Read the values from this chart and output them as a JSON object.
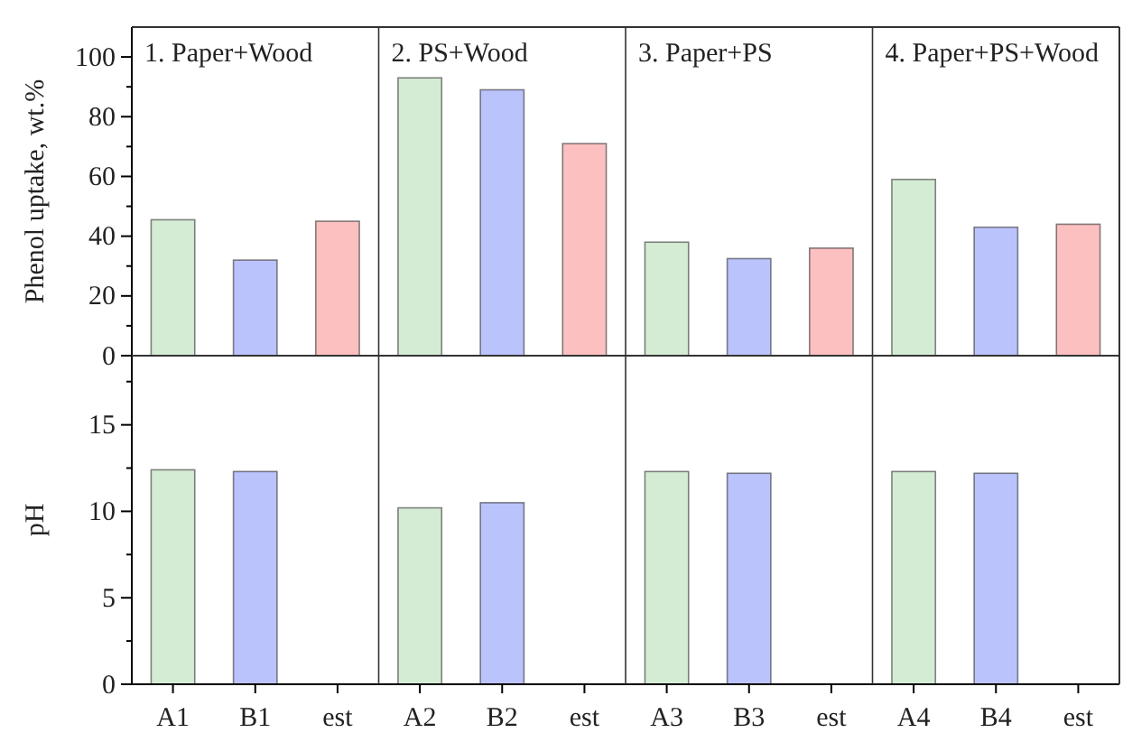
{
  "chart_data": [
    {
      "type": "bar",
      "ylabel": "Phenol uptake, wt.%",
      "categories": [
        null,
        null,
        null,
        null,
        null,
        null,
        null,
        null,
        null,
        null,
        null,
        null
      ],
      "values": [
        45.5,
        32,
        45,
        93,
        89,
        71,
        38,
        32.5,
        36,
        59,
        43,
        44
      ],
      "colors": [
        "#d5ecd4",
        "#bbc3fd",
        "#fcc0c0",
        "#d5ecd4",
        "#bbc3fd",
        "#fcc0c0",
        "#d5ecd4",
        "#bbc3fd",
        "#fcc0c0",
        "#d5ecd4",
        "#bbc3fd",
        "#fcc0c0"
      ],
      "ylim": [
        0,
        110
      ],
      "yticks": [
        0,
        {
          "value": 10,
          "label": null
        },
        20,
        {
          "value": 30,
          "label": null
        },
        40,
        {
          "value": 50,
          "label": null
        },
        60,
        {
          "value": 70,
          "label": null
        },
        80,
        {
          "value": 90,
          "label": null
        },
        100
      ],
      "annotations": [
        "1. Paper+Wood",
        "2. PS+Wood",
        "3. Paper+PS",
        "4. Paper+PS+Wood"
      ],
      "tick_labels": "y"
    },
    {
      "type": "bar",
      "ylabel": "pH",
      "categories": [
        "A1",
        "B1",
        "est",
        "A2",
        "B2",
        "est",
        "A3",
        "B3",
        "est",
        "A4",
        "B4",
        "est"
      ],
      "values": [
        12.4,
        12.3,
        null,
        10.2,
        10.5,
        null,
        12.3,
        12.2,
        null,
        12.3,
        12.2,
        null
      ],
      "colors": [
        "#d5ecd4",
        "#bbc3fd",
        null,
        "#d5ecd4",
        "#bbc3fd",
        null,
        "#d5ecd4",
        "#bbc3fd",
        null,
        "#d5ecd4",
        "#bbc3fd",
        null
      ],
      "ylim": [
        0,
        19
      ],
      "yticks": [
        0,
        {
          "value": 2.5,
          "label": null
        },
        5,
        {
          "value": 7.5,
          "label": null
        },
        10,
        {
          "value": 12.5,
          "label": null
        },
        15,
        {
          "value": 17.5,
          "label": null
        }
      ]
    }
  ]
}
